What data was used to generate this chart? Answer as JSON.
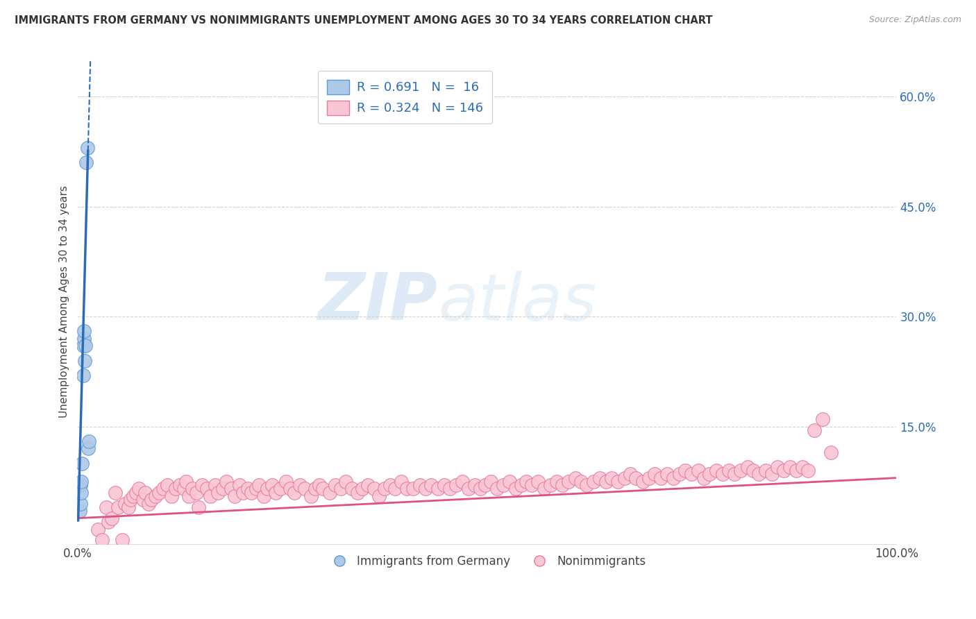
{
  "title": "IMMIGRANTS FROM GERMANY VS NONIMMIGRANTS UNEMPLOYMENT AMONG AGES 30 TO 34 YEARS CORRELATION CHART",
  "source": "Source: ZipAtlas.com",
  "ylabel": "Unemployment Among Ages 30 to 34 years",
  "xlim": [
    0,
    1.0
  ],
  "ylim": [
    -0.01,
    0.65
  ],
  "xticks": [
    0.0,
    0.1,
    0.2,
    0.3,
    0.4,
    0.5,
    0.6,
    0.7,
    0.8,
    0.9,
    1.0
  ],
  "xticklabels": [
    "0.0%",
    "",
    "",
    "",
    "",
    "",
    "",
    "",
    "",
    "",
    "100.0%"
  ],
  "ytick_positions": [
    0.15,
    0.3,
    0.45,
    0.6
  ],
  "ytick_labels": [
    "15.0%",
    "30.0%",
    "45.0%",
    "60.0%"
  ],
  "blue_R": 0.691,
  "blue_N": 16,
  "pink_R": 0.324,
  "pink_N": 146,
  "blue_color": "#aec8e8",
  "blue_edge_color": "#5b9bd5",
  "blue_line_color": "#2b6cb8",
  "pink_color": "#f9c6d4",
  "pink_edge_color": "#e8799a",
  "pink_line_color": "#e05080",
  "background_color": "#ffffff",
  "grid_color": "#c8c8c8",
  "watermark_zip": "ZIP",
  "watermark_atlas": "atlas",
  "blue_scatter_x": [
    0.003,
    0.004,
    0.004,
    0.005,
    0.005,
    0.006,
    0.007,
    0.007,
    0.008,
    0.008,
    0.009,
    0.01,
    0.011,
    0.012,
    0.013,
    0.014
  ],
  "blue_scatter_y": [
    0.035,
    0.045,
    0.07,
    0.06,
    0.075,
    0.1,
    0.22,
    0.26,
    0.27,
    0.28,
    0.24,
    0.26,
    0.51,
    0.53,
    0.12,
    0.13
  ],
  "blue_line_x0": 0.001,
  "blue_line_x1_solid": 0.013,
  "blue_line_x1_dash": 0.022,
  "blue_intercept": -0.02,
  "blue_slope": 42.0,
  "pink_intercept": 0.025,
  "pink_slope": 0.055,
  "pink_scatter_x": [
    0.025,
    0.03,
    0.035,
    0.038,
    0.042,
    0.046,
    0.05,
    0.055,
    0.058,
    0.062,
    0.065,
    0.068,
    0.072,
    0.075,
    0.08,
    0.083,
    0.087,
    0.09,
    0.095,
    0.1,
    0.105,
    0.11,
    0.115,
    0.12,
    0.125,
    0.13,
    0.133,
    0.136,
    0.14,
    0.145,
    0.148,
    0.152,
    0.158,
    0.162,
    0.168,
    0.172,
    0.178,
    0.182,
    0.188,
    0.192,
    0.198,
    0.202,
    0.208,
    0.212,
    0.218,
    0.222,
    0.228,
    0.232,
    0.238,
    0.242,
    0.248,
    0.255,
    0.26,
    0.265,
    0.272,
    0.278,
    0.285,
    0.29,
    0.295,
    0.3,
    0.308,
    0.315,
    0.322,
    0.328,
    0.335,
    0.342,
    0.348,
    0.355,
    0.362,
    0.368,
    0.375,
    0.382,
    0.388,
    0.395,
    0.402,
    0.41,
    0.418,
    0.425,
    0.432,
    0.44,
    0.448,
    0.455,
    0.462,
    0.47,
    0.478,
    0.485,
    0.492,
    0.498,
    0.505,
    0.512,
    0.52,
    0.528,
    0.535,
    0.542,
    0.548,
    0.555,
    0.562,
    0.57,
    0.578,
    0.585,
    0.592,
    0.6,
    0.608,
    0.615,
    0.622,
    0.63,
    0.638,
    0.645,
    0.652,
    0.66,
    0.668,
    0.675,
    0.682,
    0.69,
    0.698,
    0.705,
    0.712,
    0.72,
    0.728,
    0.735,
    0.742,
    0.75,
    0.758,
    0.765,
    0.772,
    0.78,
    0.788,
    0.795,
    0.802,
    0.81,
    0.818,
    0.825,
    0.832,
    0.84,
    0.848,
    0.855,
    0.862,
    0.87,
    0.878,
    0.885,
    0.892,
    0.9,
    0.91,
    0.92
  ],
  "pink_scatter_y": [
    0.01,
    -0.005,
    0.04,
    0.02,
    0.025,
    0.06,
    0.04,
    -0.005,
    0.045,
    0.04,
    0.05,
    0.055,
    0.06,
    0.065,
    0.05,
    0.06,
    0.045,
    0.05,
    0.055,
    0.06,
    0.065,
    0.07,
    0.055,
    0.065,
    0.07,
    0.065,
    0.075,
    0.055,
    0.065,
    0.06,
    0.04,
    0.07,
    0.065,
    0.055,
    0.07,
    0.06,
    0.065,
    0.075,
    0.065,
    0.055,
    0.07,
    0.06,
    0.065,
    0.06,
    0.065,
    0.07,
    0.055,
    0.065,
    0.07,
    0.06,
    0.065,
    0.075,
    0.065,
    0.06,
    0.07,
    0.065,
    0.055,
    0.065,
    0.07,
    0.065,
    0.06,
    0.07,
    0.065,
    0.075,
    0.065,
    0.06,
    0.065,
    0.07,
    0.065,
    0.055,
    0.065,
    0.07,
    0.065,
    0.075,
    0.065,
    0.065,
    0.07,
    0.065,
    0.07,
    0.065,
    0.07,
    0.065,
    0.07,
    0.075,
    0.065,
    0.07,
    0.065,
    0.07,
    0.075,
    0.065,
    0.07,
    0.075,
    0.065,
    0.07,
    0.075,
    0.07,
    0.075,
    0.065,
    0.07,
    0.075,
    0.07,
    0.075,
    0.08,
    0.075,
    0.07,
    0.075,
    0.08,
    0.075,
    0.08,
    0.075,
    0.08,
    0.085,
    0.08,
    0.075,
    0.08,
    0.085,
    0.08,
    0.085,
    0.08,
    0.085,
    0.09,
    0.085,
    0.09,
    0.08,
    0.085,
    0.09,
    0.085,
    0.09,
    0.085,
    0.09,
    0.095,
    0.09,
    0.085,
    0.09,
    0.085,
    0.095,
    0.09,
    0.095,
    0.09,
    0.095,
    0.09,
    0.145,
    0.16,
    0.115
  ],
  "legend_fontsize": 13,
  "title_fontsize": 10.5,
  "source_fontsize": 9
}
